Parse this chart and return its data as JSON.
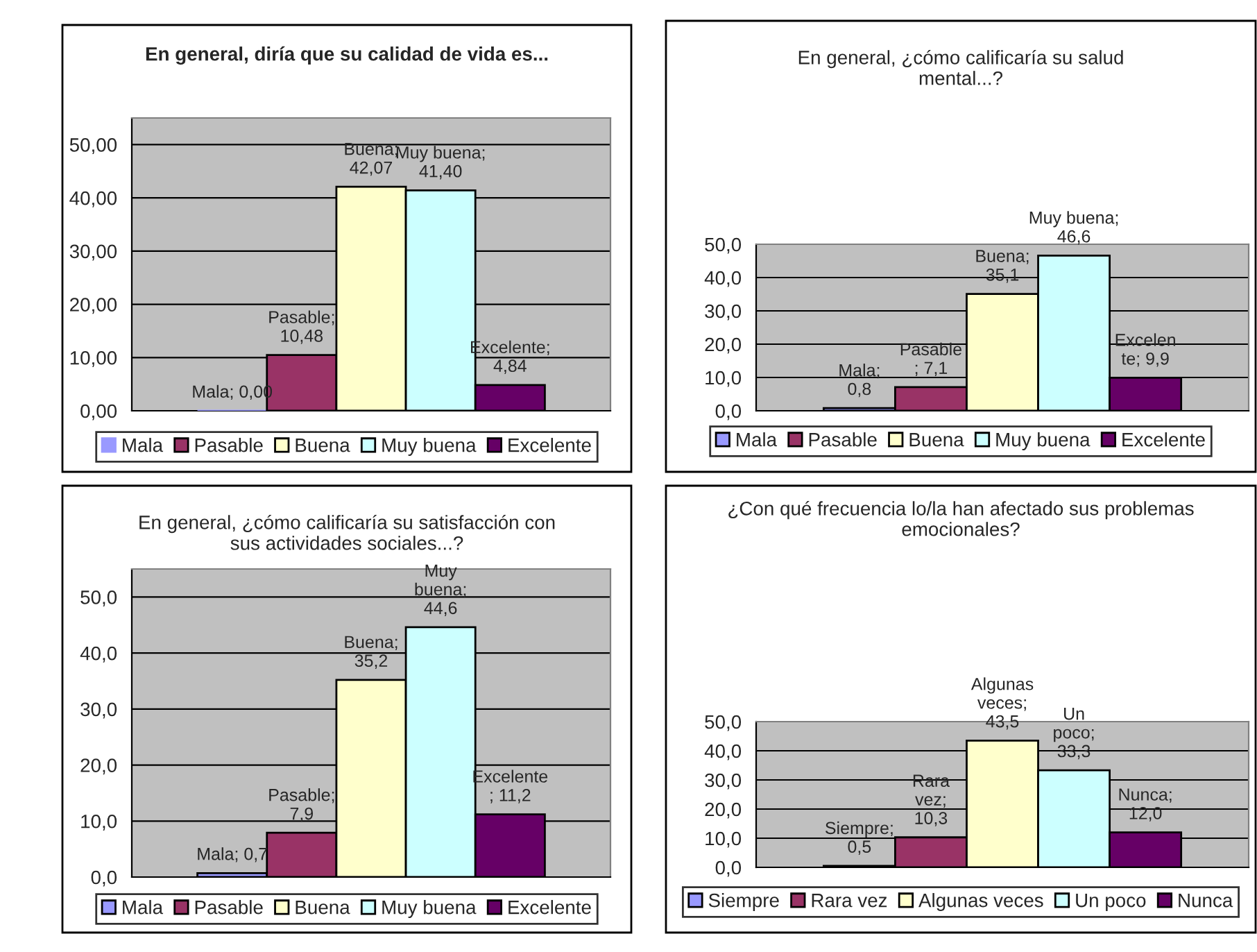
{
  "chart_data": [
    {
      "type": "bar",
      "title": "En general, diría que su calidad de vida es...",
      "categories": [
        null
      ],
      "series": [
        {
          "name": "Mala",
          "color": "#9999ff",
          "values": [
            0.0
          ],
          "value_labels": [
            "Mala; 0,00"
          ]
        },
        {
          "name": "Pasable",
          "color": "#993366",
          "values": [
            10.48
          ],
          "value_labels": [
            "Pasable;\n10,48"
          ]
        },
        {
          "name": "Buena",
          "color": "#ffffcc",
          "values": [
            42.07
          ],
          "value_labels": [
            "Buena;\n42,07"
          ]
        },
        {
          "name": "Muy buena",
          "color": "#ccffff",
          "values": [
            41.4
          ],
          "value_labels": [
            "Muy buena;\n41,40"
          ]
        },
        {
          "name": "Excelente",
          "color": "#660066",
          "values": [
            4.84
          ],
          "value_labels": [
            "Excelente;\n4,84"
          ]
        }
      ],
      "ylim": [
        0,
        55
      ],
      "yticks": [
        {
          "value": 0,
          "label": "0,00"
        },
        {
          "value": 10,
          "label": "10,00"
        },
        {
          "value": 20,
          "label": "20,00"
        },
        {
          "value": 30,
          "label": "30,00"
        },
        {
          "value": 40,
          "label": "40,00"
        },
        {
          "value": 50,
          "label": "50,00"
        }
      ],
      "grid": "y",
      "legend": "bottom",
      "tick_labels": "y"
    },
    {
      "type": "bar",
      "title": "En general, ¿cómo calificaría su salud\nmental...?",
      "categories": [
        null
      ],
      "series": [
        {
          "name": "Mala",
          "color": "#9999ff",
          "values": [
            0.8
          ],
          "value_labels": [
            "Mala;\n0,8"
          ]
        },
        {
          "name": "Pasable",
          "color": "#993366",
          "values": [
            7.1
          ],
          "value_labels": [
            "Pasable\n; 7,1"
          ]
        },
        {
          "name": "Buena",
          "color": "#ffffcc",
          "values": [
            35.1
          ],
          "value_labels": [
            "Buena;\n35,1"
          ]
        },
        {
          "name": "Muy buena",
          "color": "#ccffff",
          "values": [
            46.6
          ],
          "value_labels": [
            "Muy buena;\n46,6"
          ]
        },
        {
          "name": "Excelente",
          "color": "#660066",
          "values": [
            9.9
          ],
          "value_labels": [
            "Excelen\nte; 9,9"
          ]
        }
      ],
      "ylim": [
        0,
        50
      ],
      "yticks": [
        {
          "value": 0,
          "label": "0,0"
        },
        {
          "value": 10,
          "label": "10,0"
        },
        {
          "value": 20,
          "label": "20,0"
        },
        {
          "value": 30,
          "label": "30,0"
        },
        {
          "value": 40,
          "label": "40,0"
        },
        {
          "value": 50,
          "label": "50,0"
        }
      ],
      "grid": "y",
      "legend": "bottom",
      "tick_labels": "y"
    },
    {
      "type": "bar",
      "title": "En general, ¿cómo calificaría su satisfacción con\nsus actividades sociales...?",
      "categories": [
        null
      ],
      "series": [
        {
          "name": "Mala",
          "color": "#9999ff",
          "values": [
            0.7
          ],
          "value_labels": [
            "Mala; 0,7"
          ]
        },
        {
          "name": "Pasable",
          "color": "#993366",
          "values": [
            7.9
          ],
          "value_labels": [
            "Pasable;\n7,9"
          ]
        },
        {
          "name": "Buena",
          "color": "#ffffcc",
          "values": [
            35.2
          ],
          "value_labels": [
            "Buena;\n35,2"
          ]
        },
        {
          "name": "Muy buena",
          "color": "#ccffff",
          "values": [
            44.6
          ],
          "value_labels": [
            "Muy\nbuena;\n44,6"
          ]
        },
        {
          "name": "Excelente",
          "color": "#660066",
          "values": [
            11.2
          ],
          "value_labels": [
            "Excelente\n; 11,2"
          ]
        }
      ],
      "ylim": [
        0,
        55
      ],
      "yticks": [
        {
          "value": 0,
          "label": "0,0"
        },
        {
          "value": 10,
          "label": "10,0"
        },
        {
          "value": 20,
          "label": "20,0"
        },
        {
          "value": 30,
          "label": "30,0"
        },
        {
          "value": 40,
          "label": "40,0"
        },
        {
          "value": 50,
          "label": "50,0"
        }
      ],
      "grid": "y",
      "legend": "bottom",
      "tick_labels": "y"
    },
    {
      "type": "bar",
      "title": "¿Con qué frecuencia lo/la han afectado sus problemas\nemocionales?",
      "categories": [
        null
      ],
      "series": [
        {
          "name": "Siempre",
          "color": "#9999ff",
          "values": [
            0.5
          ],
          "value_labels": [
            "Siempre;\n0,5"
          ]
        },
        {
          "name": "Rara vez",
          "color": "#993366",
          "values": [
            10.3
          ],
          "value_labels": [
            "Rara\nvez;\n10,3"
          ]
        },
        {
          "name": "Algunas veces",
          "color": "#ffffcc",
          "values": [
            43.5
          ],
          "value_labels": [
            "Algunas\nveces;\n43,5"
          ]
        },
        {
          "name": "Un poco",
          "color": "#ccffff",
          "values": [
            33.3
          ],
          "value_labels": [
            "Un\npoco;\n33,3"
          ]
        },
        {
          "name": "Nunca",
          "color": "#660066",
          "values": [
            12.0
          ],
          "value_labels": [
            "Nunca;\n12,0"
          ]
        }
      ],
      "ylim": [
        0,
        50
      ],
      "yticks": [
        {
          "value": 0,
          "label": "0,0"
        },
        {
          "value": 10,
          "label": "10,0"
        },
        {
          "value": 20,
          "label": "20,0"
        },
        {
          "value": 30,
          "label": "30,0"
        },
        {
          "value": 40,
          "label": "40,0"
        },
        {
          "value": 50,
          "label": "50,0"
        }
      ],
      "grid": "y",
      "legend": "bottom",
      "tick_labels": "y"
    }
  ]
}
